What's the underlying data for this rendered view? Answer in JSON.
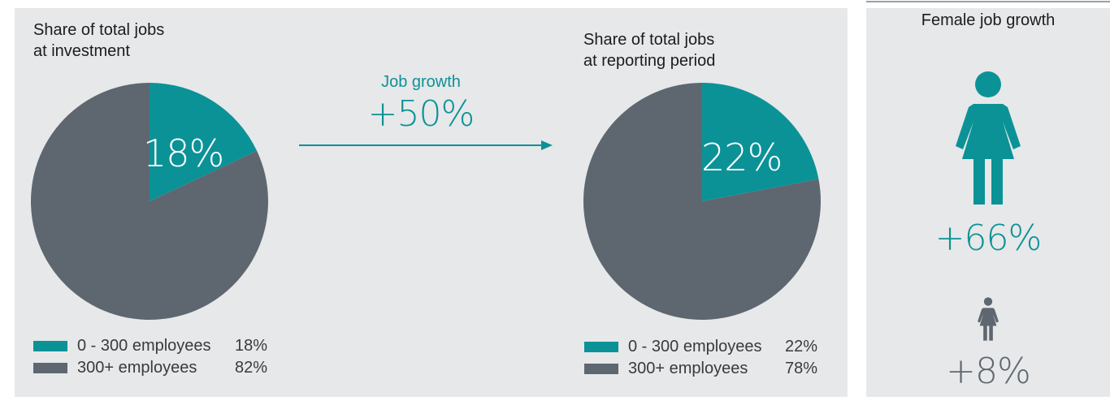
{
  "chart_data": [
    {
      "type": "pie",
      "title_lines": [
        "Share of total jobs",
        "at investment"
      ],
      "slices": [
        {
          "label": "0 - 300 employees",
          "value": 18,
          "value_label": "18%",
          "color": "#0b9297"
        },
        {
          "label": "300+ employees",
          "value": 82,
          "value_label": "82%",
          "color": "#5e6770"
        }
      ],
      "slice_label": "18%"
    },
    {
      "type": "pie",
      "title_lines": [
        "Share of total jobs",
        "at reporting period"
      ],
      "slices": [
        {
          "label": "0 - 300 employees",
          "value": 22,
          "value_label": "22%",
          "color": "#0b9297"
        },
        {
          "label": "300+ employees",
          "value": 78,
          "value_label": "78%",
          "color": "#5e6770"
        }
      ],
      "slice_label": "22%"
    }
  ],
  "job_growth": {
    "label": "Job growth",
    "value": "+50%"
  },
  "female_growth": {
    "title": "Female job growth",
    "primary": {
      "icon": "female-icon",
      "value": "+66%",
      "color": "#0b9297"
    },
    "secondary": {
      "icon": "female-icon",
      "value": "+8%",
      "color": "#5e6770"
    }
  }
}
